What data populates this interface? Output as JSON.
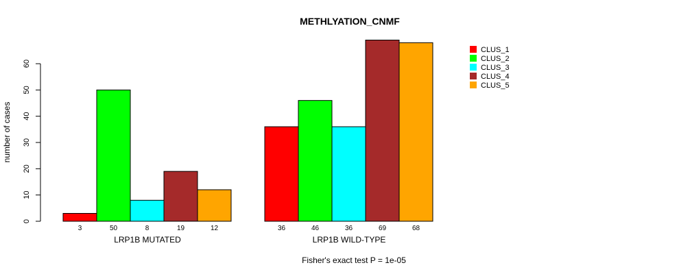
{
  "chart_data": {
    "type": "bar",
    "title": "METHLYATION_CNMF",
    "ylabel": "number of cases",
    "footer": "Fisher's exact test P = 1e-05",
    "ylim": [
      0,
      60
    ],
    "yticks": [
      0,
      10,
      20,
      30,
      40,
      50,
      60
    ],
    "groups": [
      {
        "label": "LRP1B MUTATED",
        "values": [
          3,
          50,
          8,
          19,
          12
        ],
        "value_labels": [
          "3",
          "50",
          "8",
          "19",
          "12"
        ]
      },
      {
        "label": "LRP1B WILD-TYPE",
        "values": [
          36,
          46,
          36,
          69,
          68
        ],
        "value_labels": [
          "36",
          "46",
          "36",
          "69",
          "68"
        ]
      }
    ],
    "series": [
      {
        "name": "CLUS_1",
        "color": "#ff0000"
      },
      {
        "name": "CLUS_2",
        "color": "#00ff00"
      },
      {
        "name": "CLUS_3",
        "color": "#00ffff"
      },
      {
        "name": "CLUS_4",
        "color": "#a52a2a"
      },
      {
        "name": "CLUS_5",
        "color": "#ffa500"
      }
    ],
    "legend_position": "top-right",
    "grid": false
  }
}
